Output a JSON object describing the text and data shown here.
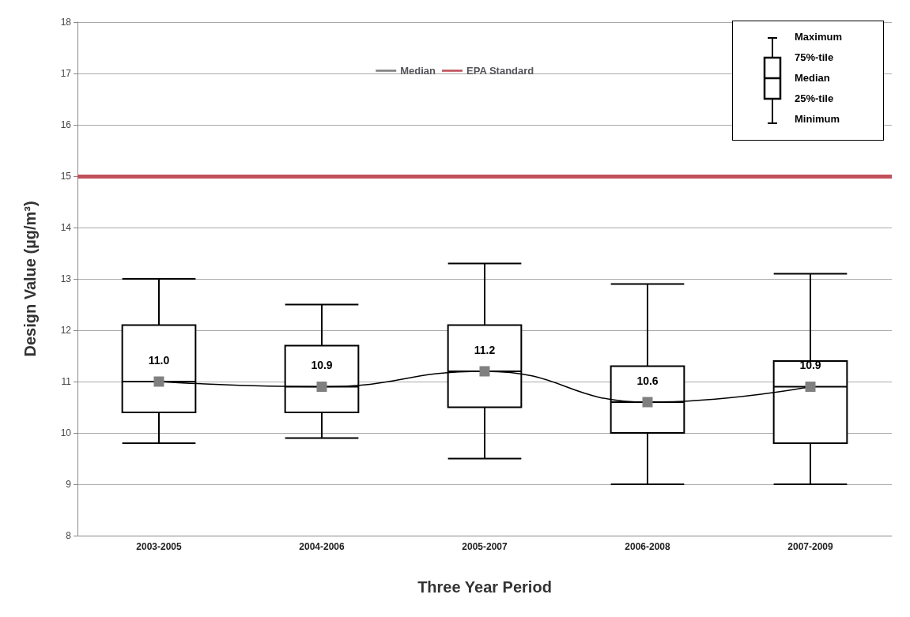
{
  "chart_data": {
    "type": "box",
    "xlabel": "Three Year Period",
    "ylabel": "Design Value (µg/m³)",
    "categories": [
      "2003-2005",
      "2004-2006",
      "2005-2007",
      "2006-2008",
      "2007-2009"
    ],
    "boxes": [
      {
        "low": 9.8,
        "q1": 10.4,
        "median": 11.0,
        "q3": 12.1,
        "high": 13.0
      },
      {
        "low": 9.9,
        "q1": 10.4,
        "median": 10.9,
        "q3": 11.7,
        "high": 12.5
      },
      {
        "low": 9.5,
        "q1": 10.5,
        "median": 11.2,
        "q3": 12.1,
        "high": 13.3
      },
      {
        "low": 9.0,
        "q1": 10.0,
        "median": 10.6,
        "q3": 11.3,
        "high": 12.9
      },
      {
        "low": 9.0,
        "q1": 9.8,
        "median": 10.9,
        "q3": 11.4,
        "high": 13.1
      }
    ],
    "series": [
      {
        "name": "Median",
        "type": "line",
        "color": "#808080",
        "values": [
          11.0,
          10.9,
          11.2,
          10.6,
          10.9
        ],
        "value_labels": [
          "11.0",
          "10.9",
          "11.2",
          "10.6",
          "10.9"
        ]
      }
    ],
    "marker": "square",
    "ref_lines": [
      {
        "axis": "y",
        "value": 15,
        "label": "EPA Standard",
        "color": "#c0505a"
      }
    ],
    "ylim": [
      8,
      18
    ],
    "yticks": [
      8,
      9,
      10,
      11,
      12,
      13,
      14,
      15,
      16,
      17,
      18
    ],
    "grid": "y",
    "legend": "top",
    "annotations": [
      "Maximum",
      "75%-tile",
      "Median",
      "25%-tile",
      "Minimum"
    ]
  }
}
